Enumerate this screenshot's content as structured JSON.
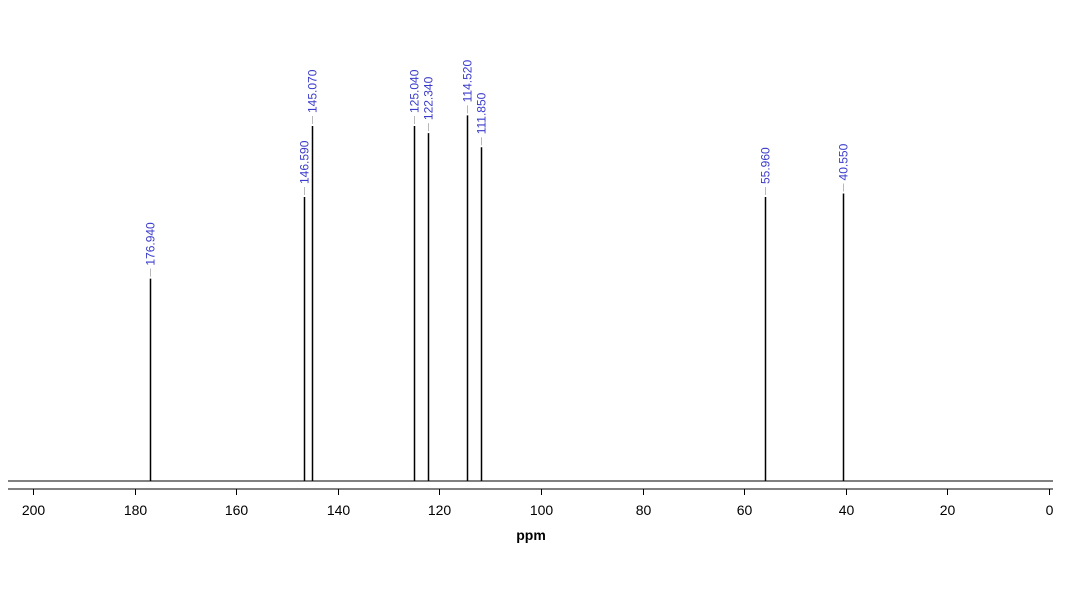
{
  "chart_data": {
    "type": "bar",
    "xlabel": "ppm",
    "xlim": [
      200,
      0
    ],
    "x_reversed": true,
    "x_ticks": [
      200,
      180,
      160,
      140,
      120,
      100,
      80,
      60,
      40,
      20,
      0
    ],
    "ylim": [
      0,
      1
    ],
    "grid": false,
    "peaks": [
      {
        "x": 176.94,
        "label": "176.940",
        "y": 0.57
      },
      {
        "x": 146.59,
        "label": "146.590",
        "y": 0.8
      },
      {
        "x": 145.07,
        "label": "145.070",
        "y": 1.0
      },
      {
        "x": 125.04,
        "label": "125.040",
        "y": 1.0
      },
      {
        "x": 122.34,
        "label": "122.340",
        "y": 0.98
      },
      {
        "x": 114.52,
        "label": "114.520",
        "y": 1.03
      },
      {
        "x": 111.85,
        "label": "111.850",
        "y": 0.94
      },
      {
        "x": 55.96,
        "label": "55.960",
        "y": 0.8
      },
      {
        "x": 40.55,
        "label": "40.550",
        "y": 0.81
      }
    ],
    "colors": {
      "peak": "#000000",
      "peak_label": "#3a3acc",
      "leader": "#b8b8b8",
      "axis": "#000000"
    }
  }
}
